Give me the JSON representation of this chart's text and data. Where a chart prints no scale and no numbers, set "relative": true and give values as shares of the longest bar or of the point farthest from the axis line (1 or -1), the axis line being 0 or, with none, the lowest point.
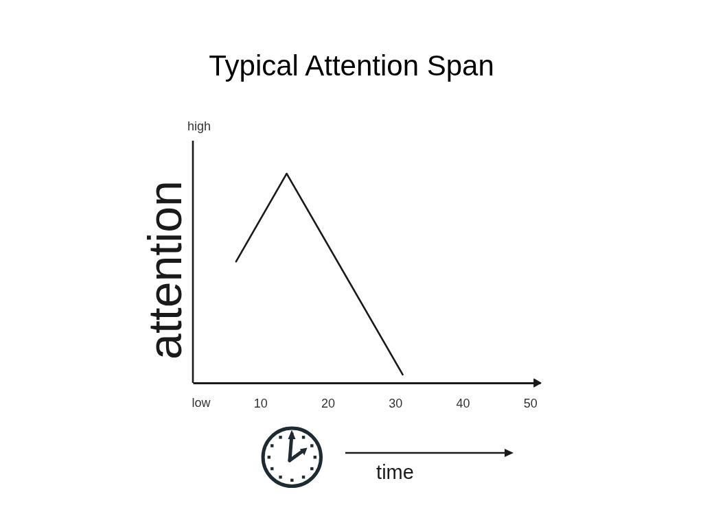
{
  "chart_data": {
    "type": "line",
    "title": "Typical Attention Span",
    "xlabel": "time",
    "ylabel": "attention",
    "x": [
      6.4,
      13.9,
      31.1
    ],
    "values": [
      0.58,
      1,
      0.04
    ],
    "color": "#1a1a1a",
    "relative": true,
    "xlim": [
      0,
      51.5
    ],
    "xticks": [
      10,
      20,
      30,
      40,
      50
    ],
    "annotations": [
      "high",
      "low"
    ]
  }
}
